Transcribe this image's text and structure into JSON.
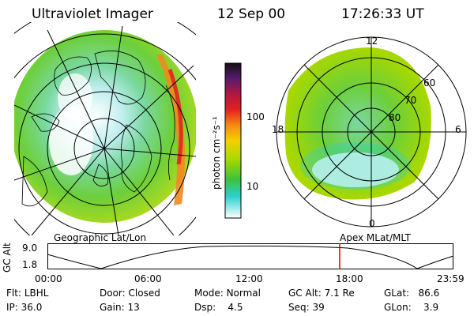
{
  "header": {
    "title": "Ultraviolet Imager",
    "date": "12 Sep 00",
    "time": "17:26:33 UT"
  },
  "colorbar": {
    "unit_label": "photon cm⁻²s⁻¹",
    "scale": "log",
    "ticks": [
      "100",
      "10"
    ],
    "colors": [
      "#111111",
      "#5a1b6e",
      "#b01840",
      "#e22020",
      "#f58a10",
      "#f5d000",
      "#a8d800",
      "#3cc23c",
      "#2ad0d0",
      "#ffffff"
    ]
  },
  "left_map": {
    "label": "Geographic Lat/Lon"
  },
  "right_map": {
    "label": "Apex  MLat/MLT",
    "mlt_labels": [
      "12",
      "18",
      "6",
      "0"
    ],
    "lat_labels": [
      "60",
      "70",
      "80"
    ]
  },
  "timeline": {
    "ylabel": "GC Alt",
    "yticks": [
      "9.0",
      "1.8"
    ],
    "xticks": [
      "00:00",
      "06:00",
      "12:00",
      "18:00",
      "23:59"
    ],
    "marker_color": "#d00000"
  },
  "info": {
    "filter": {
      "label": "Flt:",
      "value": "LBHL"
    },
    "ip": {
      "label": "IP:",
      "value": "36.0"
    },
    "door": {
      "label": "Door:",
      "value": "Closed"
    },
    "gain": {
      "label": "Gain:",
      "value": "13"
    },
    "mode": {
      "label": "Mode:",
      "value": "Normal"
    },
    "dsp": {
      "label": "Dsp:",
      "value": "4.5"
    },
    "gcalt": {
      "label": "GC Alt:",
      "value": "7.1 Re"
    },
    "seq": {
      "label": "Seq:",
      "value": "39"
    },
    "glat": {
      "label": "GLat:",
      "value": "86.6"
    },
    "glon": {
      "label": "GLon:",
      "value": "3.9"
    }
  }
}
